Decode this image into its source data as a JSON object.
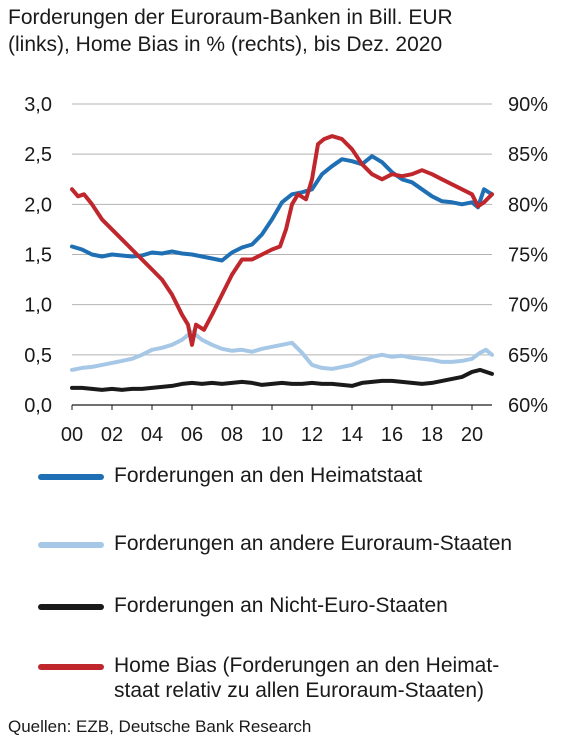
{
  "header": {
    "title_line1": "Forderungen der Euroraum-Banken in Bill. EUR",
    "title_line2": "(links), Home Bias in % (rechts), bis Dez. 2020"
  },
  "source": "Quellen: EZB, Deutsche Bank Research",
  "colors": {
    "home": "#1f6fb5",
    "other": "#a6c8e6",
    "noneuro": "#1a1a1a",
    "bias": "#c0272d",
    "grid": "#b3b3b3"
  },
  "chart_data": {
    "type": "line",
    "title": "Forderungen der Euroraum-Banken in Bill. EUR (links), Home Bias in % (rechts), bis Dez. 2020",
    "x_ticks": [
      "00",
      "02",
      "04",
      "06",
      "08",
      "10",
      "12",
      "14",
      "16",
      "18",
      "20"
    ],
    "x_tick_years": [
      2000,
      2002,
      2004,
      2006,
      2008,
      2010,
      2012,
      2014,
      2016,
      2018,
      2020
    ],
    "xlim": [
      2000,
      2021
    ],
    "y_left": {
      "ticks": [
        "0,0",
        "0,5",
        "1,0",
        "1,5",
        "2,0",
        "2,5",
        "3,0"
      ],
      "range": [
        0,
        3
      ]
    },
    "y_right": {
      "ticks": [
        "60%",
        "65%",
        "70%",
        "75%",
        "80%",
        "85%",
        "90%"
      ],
      "range": [
        60,
        90
      ]
    },
    "grid": "horizontal",
    "legend_position": "bottom",
    "series": [
      {
        "name": "Forderungen an den Heimatstaat",
        "axis": "left",
        "color_key": "home",
        "points": [
          [
            2000.0,
            1.58
          ],
          [
            2000.5,
            1.55
          ],
          [
            2001.0,
            1.5
          ],
          [
            2001.5,
            1.48
          ],
          [
            2002.0,
            1.5
          ],
          [
            2002.5,
            1.49
          ],
          [
            2003.0,
            1.48
          ],
          [
            2003.5,
            1.49
          ],
          [
            2004.0,
            1.52
          ],
          [
            2004.5,
            1.51
          ],
          [
            2005.0,
            1.53
          ],
          [
            2005.5,
            1.51
          ],
          [
            2006.0,
            1.5
          ],
          [
            2006.5,
            1.48
          ],
          [
            2007.0,
            1.46
          ],
          [
            2007.5,
            1.44
          ],
          [
            2008.0,
            1.52
          ],
          [
            2008.5,
            1.57
          ],
          [
            2009.0,
            1.6
          ],
          [
            2009.5,
            1.7
          ],
          [
            2010.0,
            1.85
          ],
          [
            2010.5,
            2.02
          ],
          [
            2011.0,
            2.1
          ],
          [
            2011.5,
            2.12
          ],
          [
            2012.0,
            2.15
          ],
          [
            2012.5,
            2.3
          ],
          [
            2013.0,
            2.38
          ],
          [
            2013.5,
            2.45
          ],
          [
            2014.0,
            2.43
          ],
          [
            2014.5,
            2.4
          ],
          [
            2015.0,
            2.48
          ],
          [
            2015.5,
            2.42
          ],
          [
            2016.0,
            2.32
          ],
          [
            2016.5,
            2.25
          ],
          [
            2017.0,
            2.22
          ],
          [
            2017.5,
            2.15
          ],
          [
            2018.0,
            2.08
          ],
          [
            2018.5,
            2.03
          ],
          [
            2019.0,
            2.02
          ],
          [
            2019.5,
            2.0
          ],
          [
            2020.0,
            2.02
          ],
          [
            2020.3,
            1.97
          ],
          [
            2020.6,
            2.15
          ],
          [
            2021.0,
            2.1
          ]
        ]
      },
      {
        "name": "Forderungen an andere Euroraum-Staaten",
        "axis": "left",
        "color_key": "other",
        "points": [
          [
            2000.0,
            0.35
          ],
          [
            2000.5,
            0.37
          ],
          [
            2001.0,
            0.38
          ],
          [
            2001.5,
            0.4
          ],
          [
            2002.0,
            0.42
          ],
          [
            2002.5,
            0.44
          ],
          [
            2003.0,
            0.46
          ],
          [
            2003.5,
            0.5
          ],
          [
            2004.0,
            0.55
          ],
          [
            2004.5,
            0.57
          ],
          [
            2005.0,
            0.6
          ],
          [
            2005.5,
            0.65
          ],
          [
            2006.0,
            0.73
          ],
          [
            2006.5,
            0.65
          ],
          [
            2007.0,
            0.6
          ],
          [
            2007.5,
            0.56
          ],
          [
            2008.0,
            0.54
          ],
          [
            2008.5,
            0.55
          ],
          [
            2009.0,
            0.53
          ],
          [
            2009.5,
            0.56
          ],
          [
            2010.0,
            0.58
          ],
          [
            2010.5,
            0.6
          ],
          [
            2011.0,
            0.62
          ],
          [
            2011.5,
            0.52
          ],
          [
            2012.0,
            0.4
          ],
          [
            2012.5,
            0.37
          ],
          [
            2013.0,
            0.36
          ],
          [
            2013.5,
            0.38
          ],
          [
            2014.0,
            0.4
          ],
          [
            2014.5,
            0.44
          ],
          [
            2015.0,
            0.48
          ],
          [
            2015.5,
            0.5
          ],
          [
            2016.0,
            0.48
          ],
          [
            2016.5,
            0.49
          ],
          [
            2017.0,
            0.47
          ],
          [
            2017.5,
            0.46
          ],
          [
            2018.0,
            0.45
          ],
          [
            2018.5,
            0.43
          ],
          [
            2019.0,
            0.43
          ],
          [
            2019.5,
            0.44
          ],
          [
            2020.0,
            0.46
          ],
          [
            2020.4,
            0.52
          ],
          [
            2020.7,
            0.55
          ],
          [
            2021.0,
            0.5
          ]
        ]
      },
      {
        "name": "Forderungen an Nicht-Euro-Staaten",
        "axis": "left",
        "color_key": "noneuro",
        "points": [
          [
            2000.0,
            0.17
          ],
          [
            2000.5,
            0.17
          ],
          [
            2001.0,
            0.16
          ],
          [
            2001.5,
            0.15
          ],
          [
            2002.0,
            0.16
          ],
          [
            2002.5,
            0.15
          ],
          [
            2003.0,
            0.16
          ],
          [
            2003.5,
            0.16
          ],
          [
            2004.0,
            0.17
          ],
          [
            2004.5,
            0.18
          ],
          [
            2005.0,
            0.19
          ],
          [
            2005.5,
            0.21
          ],
          [
            2006.0,
            0.22
          ],
          [
            2006.5,
            0.21
          ],
          [
            2007.0,
            0.22
          ],
          [
            2007.5,
            0.21
          ],
          [
            2008.0,
            0.22
          ],
          [
            2008.5,
            0.23
          ],
          [
            2009.0,
            0.22
          ],
          [
            2009.5,
            0.2
          ],
          [
            2010.0,
            0.21
          ],
          [
            2010.5,
            0.22
          ],
          [
            2011.0,
            0.21
          ],
          [
            2011.5,
            0.21
          ],
          [
            2012.0,
            0.22
          ],
          [
            2012.5,
            0.21
          ],
          [
            2013.0,
            0.21
          ],
          [
            2013.5,
            0.2
          ],
          [
            2014.0,
            0.19
          ],
          [
            2014.5,
            0.22
          ],
          [
            2015.0,
            0.23
          ],
          [
            2015.5,
            0.24
          ],
          [
            2016.0,
            0.24
          ],
          [
            2016.5,
            0.23
          ],
          [
            2017.0,
            0.22
          ],
          [
            2017.5,
            0.21
          ],
          [
            2018.0,
            0.22
          ],
          [
            2018.5,
            0.24
          ],
          [
            2019.0,
            0.26
          ],
          [
            2019.5,
            0.28
          ],
          [
            2020.0,
            0.33
          ],
          [
            2020.4,
            0.35
          ],
          [
            2020.7,
            0.33
          ],
          [
            2021.0,
            0.31
          ]
        ]
      },
      {
        "name": "Home Bias (Forderungen an den Heimat­staat relativ zu allen Euroraum-Staaten)",
        "legend_line1": "Home Bias (Forderungen an den Heimat-",
        "legend_line2": "staat relativ zu allen Euroraum-Staaten)",
        "axis": "right",
        "color_key": "bias",
        "points": [
          [
            2000.0,
            81.5
          ],
          [
            2000.3,
            80.8
          ],
          [
            2000.6,
            81.0
          ],
          [
            2001.0,
            80.0
          ],
          [
            2001.5,
            78.5
          ],
          [
            2002.0,
            77.5
          ],
          [
            2002.5,
            76.5
          ],
          [
            2003.0,
            75.5
          ],
          [
            2003.5,
            74.5
          ],
          [
            2004.0,
            73.5
          ],
          [
            2004.5,
            72.5
          ],
          [
            2005.0,
            71.0
          ],
          [
            2005.5,
            69.0
          ],
          [
            2005.8,
            68.0
          ],
          [
            2006.0,
            66.0
          ],
          [
            2006.2,
            68.0
          ],
          [
            2006.6,
            67.5
          ],
          [
            2007.0,
            69.0
          ],
          [
            2007.5,
            71.0
          ],
          [
            2008.0,
            73.0
          ],
          [
            2008.5,
            74.5
          ],
          [
            2009.0,
            74.5
          ],
          [
            2009.5,
            75.0
          ],
          [
            2010.0,
            75.5
          ],
          [
            2010.4,
            75.8
          ],
          [
            2010.7,
            77.5
          ],
          [
            2011.0,
            80.0
          ],
          [
            2011.3,
            81.0
          ],
          [
            2011.7,
            80.5
          ],
          [
            2012.0,
            82.5
          ],
          [
            2012.3,
            86.0
          ],
          [
            2012.6,
            86.5
          ],
          [
            2013.0,
            86.8
          ],
          [
            2013.5,
            86.5
          ],
          [
            2014.0,
            85.5
          ],
          [
            2014.5,
            84.0
          ],
          [
            2015.0,
            83.0
          ],
          [
            2015.5,
            82.5
          ],
          [
            2016.0,
            83.0
          ],
          [
            2016.5,
            82.8
          ],
          [
            2017.0,
            83.0
          ],
          [
            2017.5,
            83.4
          ],
          [
            2018.0,
            83.0
          ],
          [
            2018.5,
            82.5
          ],
          [
            2019.0,
            82.0
          ],
          [
            2019.5,
            81.5
          ],
          [
            2020.0,
            81.0
          ],
          [
            2020.3,
            79.8
          ],
          [
            2020.6,
            80.2
          ],
          [
            2021.0,
            81.0
          ]
        ]
      }
    ]
  }
}
